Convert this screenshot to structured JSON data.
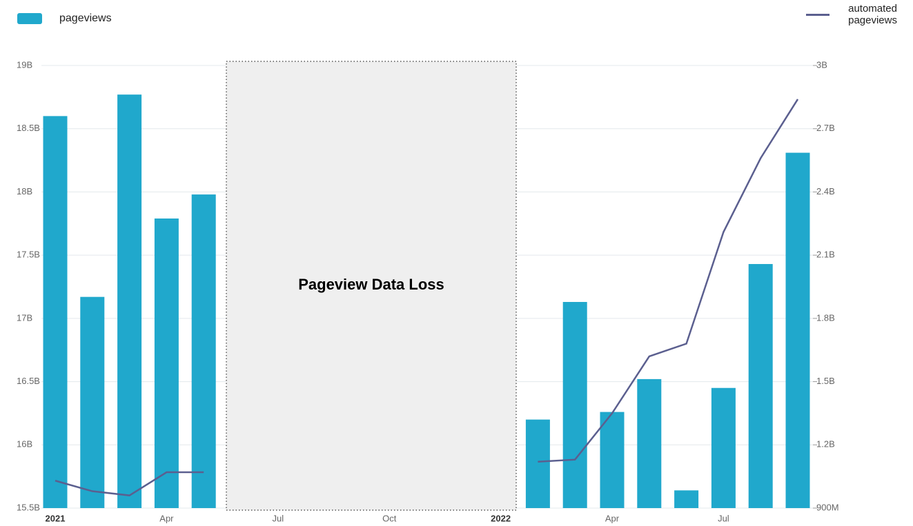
{
  "chart_data": {
    "type": "bar-line",
    "categories": [
      "2021",
      null,
      null,
      "Apr",
      null,
      null,
      "Jul",
      null,
      null,
      "Oct",
      null,
      null,
      "2022",
      null,
      null,
      "Apr",
      null,
      null,
      "Jul",
      null,
      null
    ],
    "series": [
      {
        "name": "pageviews",
        "type": "bar",
        "color": "#20a8cc",
        "values": [
          18.6,
          17.17,
          18.77,
          17.79,
          17.98,
          null,
          null,
          null,
          null,
          null,
          null,
          null,
          null,
          16.2,
          17.13,
          16.26,
          16.52,
          15.64,
          16.45,
          17.43,
          18.31
        ]
      },
      {
        "name": "automated pageviews",
        "type": "line",
        "axis": "y2",
        "color": "#5b5f8f",
        "values": [
          1.03,
          0.98,
          0.96,
          1.07,
          1.07,
          null,
          null,
          null,
          null,
          null,
          null,
          null,
          null,
          1.12,
          1.13,
          1.35,
          1.62,
          1.68,
          2.21,
          2.56,
          2.84
        ]
      }
    ],
    "annotation": "Pageview Data Loss",
    "ylim": [
      15.5,
      19
    ],
    "yticks": [
      {
        "value": 15.5,
        "label": "15.5B"
      },
      {
        "value": 16,
        "label": "16B"
      },
      {
        "value": 16.5,
        "label": "16.5B"
      },
      {
        "value": 17,
        "label": "17B"
      },
      {
        "value": 17.5,
        "label": "17.5B"
      },
      {
        "value": 18,
        "label": "18B"
      },
      {
        "value": 18.5,
        "label": "18.5B"
      },
      {
        "value": 19,
        "label": "19B"
      }
    ],
    "y2lim": [
      0.9,
      3
    ],
    "y2ticks": [
      {
        "value": 0.9,
        "label": "900M"
      },
      {
        "value": 1.2,
        "label": "1.2B"
      },
      {
        "value": 1.5,
        "label": "1.5B"
      },
      {
        "value": 1.8,
        "label": "1.8B"
      },
      {
        "value": 2.1,
        "label": "2.1B"
      },
      {
        "value": 2.4,
        "label": "2.4B"
      },
      {
        "value": 2.7,
        "label": "2.7B"
      },
      {
        "value": 3,
        "label": "3B"
      }
    ],
    "grid": true
  }
}
